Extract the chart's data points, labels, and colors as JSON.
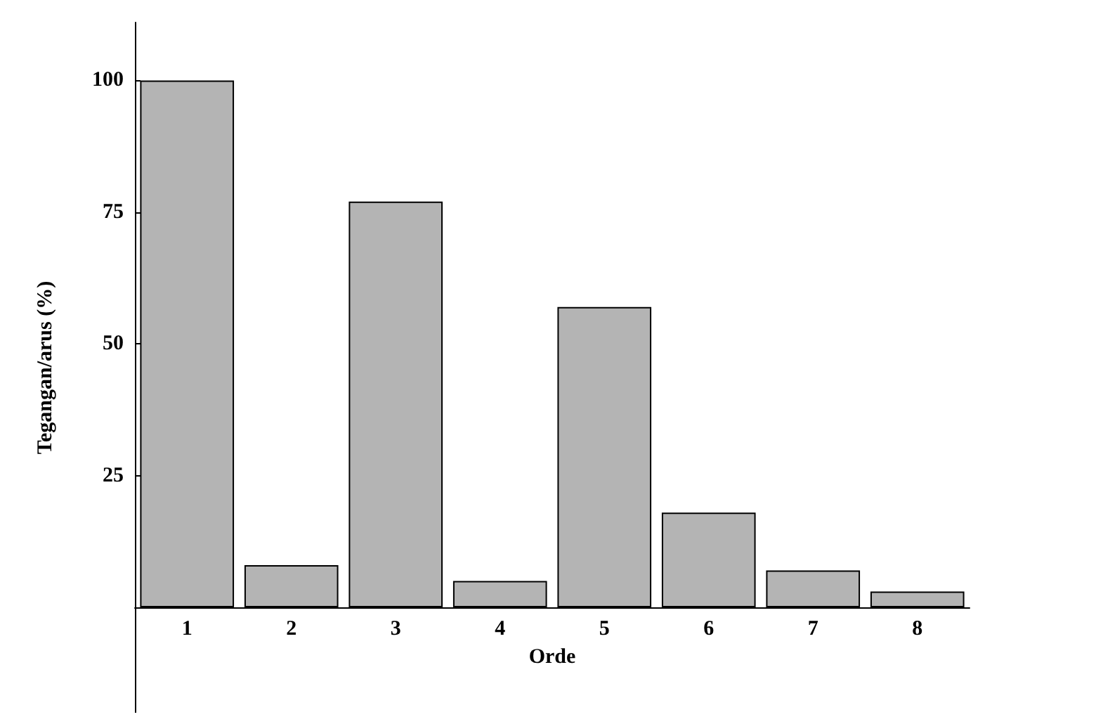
{
  "chart_data": {
    "type": "bar",
    "xlabel": "Orde",
    "ylabel": "Tegangan/arus (%)",
    "categories": [
      "1",
      "2",
      "3",
      "4",
      "5",
      "6",
      "7",
      "8"
    ],
    "values": [
      100,
      8,
      77,
      5,
      57,
      18,
      7,
      3
    ],
    "color": "#b4b4b4",
    "ylim": [
      -20,
      111
    ],
    "yticks": [
      25,
      50,
      75,
      100
    ],
    "grid": false
  }
}
